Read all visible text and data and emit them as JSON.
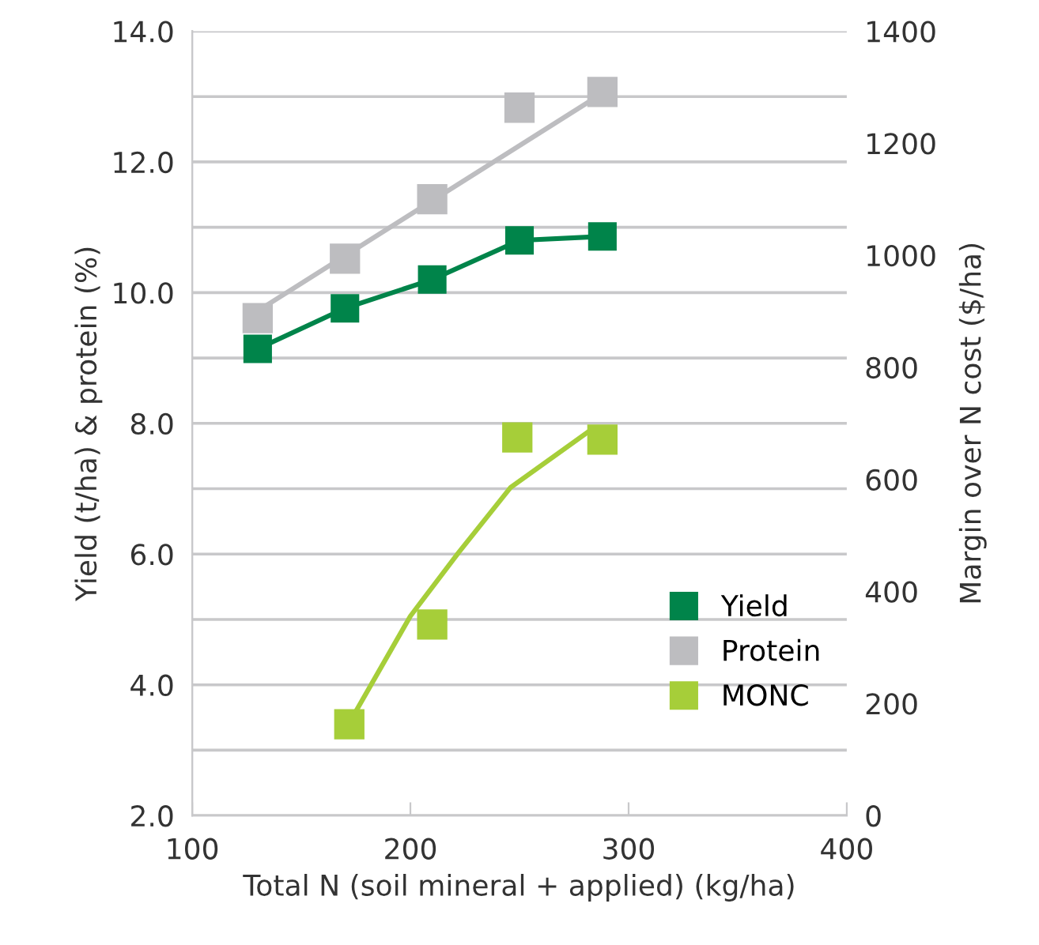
{
  "chart_data": {
    "type": "scatter",
    "xlabel": "Total N (soil mineral + applied) (kg/ha)",
    "ylabel": "Yield (t/ha) & protein (%)",
    "y2label": "Margin over N cost ($/ha)",
    "xlim": [
      100,
      400
    ],
    "xticks": [
      100,
      200,
      300,
      400
    ],
    "ylim": [
      2,
      14
    ],
    "yticks": [
      {
        "value": 2,
        "label": "2.0"
      },
      {
        "value": 3,
        "label": null
      },
      {
        "value": 4,
        "label": "4.0"
      },
      {
        "value": 5,
        "label": null
      },
      {
        "value": 6,
        "label": "6.0"
      },
      {
        "value": 7,
        "label": null
      },
      {
        "value": 8,
        "label": "8.0"
      },
      {
        "value": 9,
        "label": null
      },
      {
        "value": 10,
        "label": "10.0"
      },
      {
        "value": 11,
        "label": null
      },
      {
        "value": 12,
        "label": "12.0"
      },
      {
        "value": 13,
        "label": null
      },
      {
        "value": 14,
        "label": "14.0"
      }
    ],
    "y2lim": [
      0,
      1400
    ],
    "y2ticks": [
      0,
      200,
      400,
      600,
      800,
      1000,
      1200,
      1400
    ],
    "grid": "y",
    "legend": "bottom right",
    "marker": "square",
    "series": [
      {
        "name": "Yield",
        "type": "line",
        "color": "#00844a",
        "x": [
          130,
          170,
          210,
          250,
          288
        ],
        "values": [
          9.14,
          9.76,
          10.2,
          10.8,
          10.86
        ]
      },
      {
        "name": "Protein",
        "color": "#bdbdc0",
        "x": [
          130,
          170,
          210,
          250,
          288
        ],
        "values": [
          9.61,
          10.52,
          11.43,
          12.83,
          13.07
        ]
      },
      {
        "type": "line",
        "marker": "none",
        "color": "#bdbdc0",
        "x": [
          130,
          287
        ],
        "values": [
          9.72,
          13.03
        ]
      },
      {
        "name": "MONC",
        "axis": "y2",
        "color": "#a6ce39",
        "x": [
          172,
          210,
          249,
          288
        ],
        "values": [
          163,
          341,
          675,
          671
        ]
      },
      {
        "type": "line",
        "marker": "none",
        "axis": "y2",
        "color": "#a6ce39",
        "x": [
          175,
          200,
          222,
          246,
          283
        ],
        "values": [
          186,
          356,
          469,
          586,
          689
        ]
      }
    ]
  }
}
